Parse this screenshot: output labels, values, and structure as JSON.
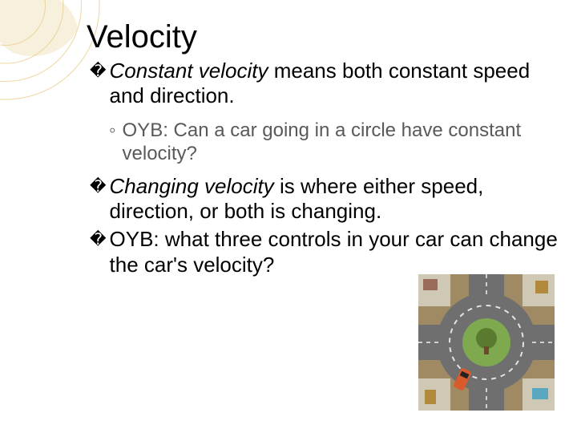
{
  "slide": {
    "title": "Velocity",
    "title_fontsize": 40,
    "body_fontsize": 26,
    "sub_fontsize": 24,
    "title_color": "#000000",
    "body_color": "#000000",
    "sub_color": "#595959",
    "background_color": "#ffffff",
    "bullet_mark": "�",
    "sub_bullet_mark": "◦",
    "bullets": [
      {
        "em": "Constant velocity",
        "rest": " means both constant speed and direction.",
        "sub": "OYB: Can a car going in a circle have constant velocity?"
      },
      {
        "em": "Changing velocity",
        "rest": " is where either speed, direction, or both is changing."
      },
      {
        "plain": "OYB: what three controls in your car can change the car's velocity?"
      }
    ]
  },
  "decor_arcs": {
    "stroke": "#e9cf8f",
    "fill_leaf": "#f2e6c7",
    "background": "transparent"
  },
  "roundabout": {
    "outer_square": "#9f8a64",
    "road": "#6f6f6f",
    "lane": "#e3e3e3",
    "center_ground": "#7fa94f",
    "tree": "#5a7a2f",
    "trunk": "#6a4a2a",
    "car_body": "#d95a2b",
    "car_window": "#222222",
    "sidewalk": "#cfc8b5",
    "dash": "#d0d0d0",
    "building1": "#9a6a5a",
    "building2": "#b08a3a",
    "pool": "#5aa7c2"
  }
}
